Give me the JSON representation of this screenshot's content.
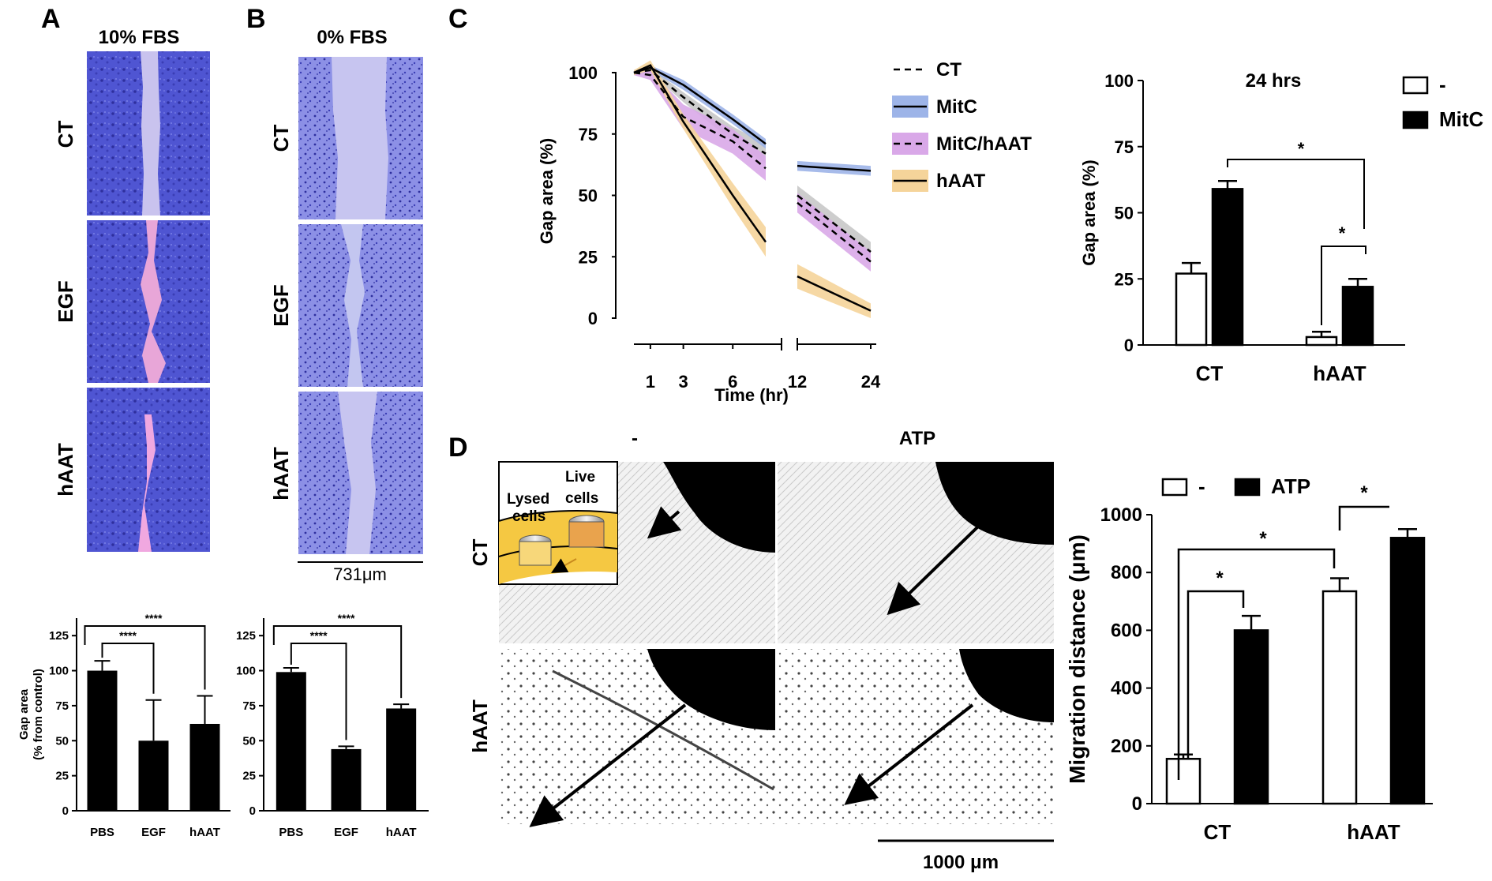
{
  "panel_labels": {
    "a": "A",
    "b": "B",
    "c": "C",
    "d": "D"
  },
  "panel_a": {
    "title": "10% FBS",
    "rows": [
      "CT",
      "EGF",
      "hAAT"
    ]
  },
  "panel_b": {
    "title": "0% FBS",
    "rows": [
      "CT",
      "EGF",
      "hAAT"
    ],
    "scale_label": "731μm"
  },
  "panel_d": {
    "col_labels": [
      "-",
      "ATP"
    ],
    "row_labels": [
      "CT",
      "hAAT"
    ],
    "inset_lysed": "Lysed",
    "inset_cells1": "cells",
    "inset_live": "Live",
    "inset_cells2": "cells",
    "scale_label": "1000 μm"
  },
  "colors": {
    "stain_blue": "#5A5FD6",
    "gap_pink": "#E8A6D8",
    "mitc_band": "#9DB4E8",
    "mitchaat_band": "#D9A8E8",
    "haat_band": "#F5D49A",
    "ct_band": "#C8C8C8"
  },
  "chart_data": [
    {
      "id": "a_bar",
      "type": "bar",
      "title": "",
      "ylabel": "Gap area",
      "ylabel2": "(% from control)",
      "categories": [
        "PBS",
        "EGF",
        "hAAT"
      ],
      "values": [
        100,
        50,
        62
      ],
      "errors": [
        7,
        29,
        20
      ],
      "ylim": [
        0,
        137.5
      ],
      "yticks": [
        "0",
        "25",
        "50",
        "75",
        "100",
        "125"
      ],
      "significance": [
        "****",
        "****"
      ]
    },
    {
      "id": "b_bar",
      "type": "bar",
      "title": "",
      "ylabel": "",
      "categories": [
        "PBS",
        "EGF",
        "hAAT"
      ],
      "values": [
        99,
        44,
        73
      ],
      "errors": [
        3,
        2,
        3
      ],
      "ylim": [
        0,
        137.5
      ],
      "yticks": [
        "0",
        "25",
        "50",
        "75",
        "100",
        "125"
      ],
      "significance": [
        "****",
        "****"
      ]
    },
    {
      "id": "c_line",
      "type": "line",
      "xlabel": "Time (hr)",
      "ylabel": "Gap area (%)",
      "xticks": [
        "1",
        "3",
        "6",
        "12",
        "24"
      ],
      "yticks": [
        "0",
        "25",
        "50",
        "75",
        "100"
      ],
      "ylim": [
        0,
        100
      ],
      "x_timepoints": [
        0,
        1,
        3,
        6,
        8,
        12,
        24
      ],
      "series": [
        {
          "name": "CT",
          "values": [
            100,
            101,
            90,
            75,
            67,
            50,
            27
          ],
          "band": [
            1,
            1,
            2,
            3,
            4,
            4,
            4
          ]
        },
        {
          "name": "MitC",
          "values": [
            100,
            102,
            95,
            81,
            71,
            62,
            60
          ],
          "band": [
            1,
            1,
            2,
            2,
            2,
            2,
            2
          ]
        },
        {
          "name": "MitC/hAAT",
          "values": [
            100,
            99,
            82,
            72,
            61,
            47,
            23
          ],
          "band": [
            1,
            2,
            5,
            5,
            5,
            4,
            4
          ]
        },
        {
          "name": "hAAT",
          "values": [
            100,
            103,
            80,
            50,
            31,
            17,
            3
          ],
          "band": [
            1,
            2,
            3,
            5,
            6,
            5,
            3
          ]
        }
      ]
    },
    {
      "id": "c_bar",
      "type": "bar",
      "title": "24 hrs",
      "ylabel": "Gap area (%)",
      "categories": [
        "CT",
        "hAAT"
      ],
      "legend": [
        "-",
        "MitC"
      ],
      "series": [
        {
          "name": "-",
          "values": [
            27,
            3
          ],
          "errors": [
            4,
            2
          ]
        },
        {
          "name": "MitC",
          "values": [
            59,
            22
          ],
          "errors": [
            3,
            3
          ]
        }
      ],
      "ylim": [
        0,
        100
      ],
      "yticks": [
        "0",
        "25",
        "50",
        "75",
        "100"
      ],
      "significance": [
        "*",
        "*"
      ]
    },
    {
      "id": "d_bar",
      "type": "bar",
      "ylabel": "Migration distance (μm)",
      "categories": [
        "CT",
        "hAAT"
      ],
      "legend": [
        "-",
        "ATP"
      ],
      "series": [
        {
          "name": "-",
          "values": [
            155,
            735
          ],
          "errors": [
            15,
            45
          ]
        },
        {
          "name": "ATP",
          "values": [
            600,
            920
          ],
          "errors": [
            50,
            30
          ]
        }
      ],
      "ylim": [
        0,
        1000
      ],
      "yticks": [
        "0",
        "200",
        "400",
        "600",
        "800",
        "1000"
      ],
      "significance": [
        "*",
        "*",
        "*"
      ]
    }
  ]
}
